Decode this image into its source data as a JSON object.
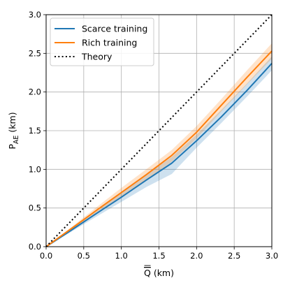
{
  "chart_data": {
    "type": "line",
    "xlabel": "Q (km)",
    "ylabel": "P_AE (km)",
    "xlim": [
      0,
      3
    ],
    "ylim": [
      0,
      3
    ],
    "grid": true,
    "legend_position": "top-left",
    "x_ticks": [
      "0.0",
      "0.5",
      "1.0",
      "1.5",
      "2.0",
      "2.5",
      "3.0"
    ],
    "y_ticks": [
      "0.0",
      "0.5",
      "1.0",
      "1.5",
      "2.0",
      "2.5",
      "3.0"
    ],
    "series": [
      {
        "name": "Scarce training",
        "color": "#1f77b4",
        "style": "solid",
        "x": [
          0,
          0.33,
          0.67,
          1.0,
          1.33,
          1.67,
          2.0,
          2.33,
          2.67,
          3.0
        ],
        "y": [
          0,
          0.21,
          0.43,
          0.64,
          0.86,
          1.08,
          1.37,
          1.68,
          2.02,
          2.37
        ],
        "band_lower": [
          0,
          0.19,
          0.39,
          0.58,
          0.77,
          0.94,
          1.28,
          1.6,
          1.94,
          2.28
        ],
        "band_upper": [
          0,
          0.23,
          0.47,
          0.7,
          0.93,
          1.16,
          1.45,
          1.77,
          2.11,
          2.46
        ]
      },
      {
        "name": "Rich training",
        "color": "#ff7f0e",
        "style": "solid",
        "x": [
          0,
          0.33,
          0.67,
          1.0,
          1.33,
          1.67,
          2.0,
          2.33,
          2.67,
          3.0
        ],
        "y": [
          0,
          0.23,
          0.47,
          0.7,
          0.93,
          1.18,
          1.48,
          1.83,
          2.19,
          2.53
        ],
        "band_lower": [
          0,
          0.21,
          0.43,
          0.65,
          0.86,
          1.1,
          1.4,
          1.75,
          2.1,
          2.43
        ],
        "band_upper": [
          0,
          0.25,
          0.51,
          0.76,
          1.0,
          1.25,
          1.56,
          1.91,
          2.28,
          2.63
        ]
      },
      {
        "name": "Theory",
        "color": "#000000",
        "style": "dotted",
        "x": [
          0,
          3
        ],
        "y": [
          0,
          3
        ]
      }
    ]
  }
}
